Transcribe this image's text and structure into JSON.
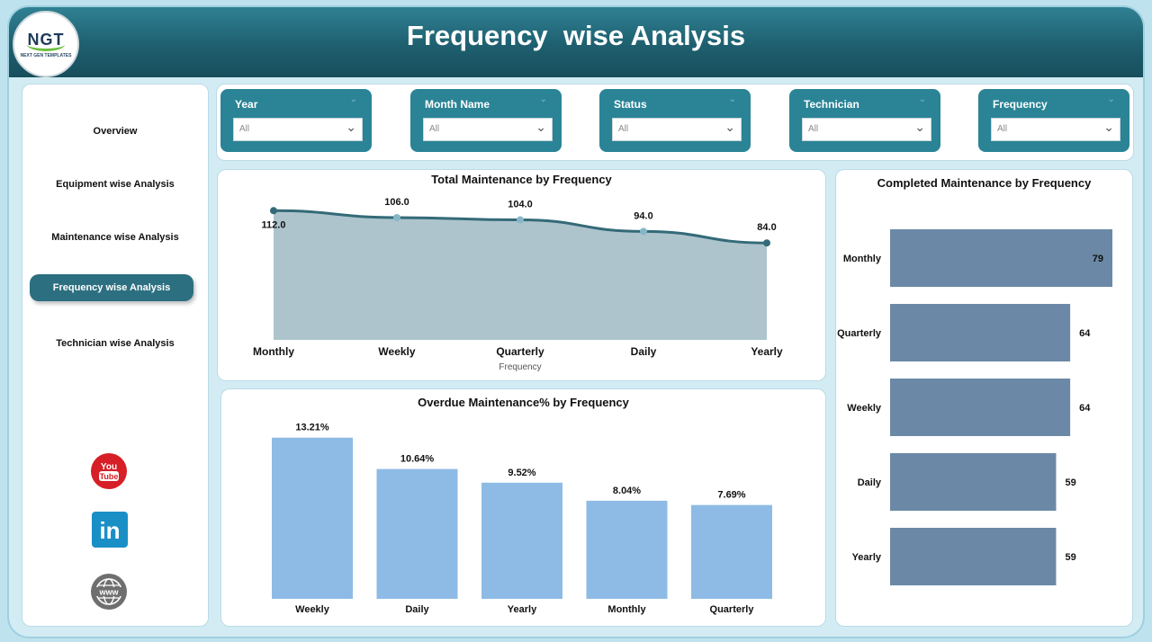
{
  "header": {
    "title": "Frequency  wise Analysis",
    "logo_text": "NGT",
    "logo_subtext": "NEXT GEN TEMPLATES"
  },
  "sidebar": {
    "items": [
      {
        "label": "Overview",
        "active": false
      },
      {
        "label": "Equipment wise Analysis",
        "active": false
      },
      {
        "label": "Maintenance wise Analysis",
        "active": false
      },
      {
        "label": "Frequency wise Analysis",
        "active": true
      },
      {
        "label": "Technician wise Analysis",
        "active": false
      }
    ],
    "social": {
      "youtube_label": "You Tube",
      "linkedin_label": "in",
      "web_label": "www"
    }
  },
  "filters": [
    {
      "label": "Year",
      "value": "All"
    },
    {
      "label": "Month Name",
      "value": "All"
    },
    {
      "label": "Status",
      "value": "All"
    },
    {
      "label": "Technician",
      "value": "All"
    },
    {
      "label": "Frequency",
      "value": "All"
    }
  ],
  "colors": {
    "header": "#1e5f6f",
    "area_fill": "#adc4cc",
    "area_line": "#346a78",
    "bar_blue": "#8ebbe6",
    "bar_slate": "#6b89a6",
    "active_nav": "#2c6f80"
  },
  "chart_data": [
    {
      "type": "area",
      "title": "Total Maintenance by Frequency",
      "xlabel": "Frequency",
      "ylabel": "",
      "categories": [
        "Monthly",
        "Weekly",
        "Quarterly",
        "Daily",
        "Yearly"
      ],
      "values": [
        112,
        106,
        104,
        94,
        84
      ],
      "labels": [
        "112.0",
        "106.0",
        "104.0",
        "94.0",
        "84.0"
      ],
      "ylim": [
        0,
        120
      ]
    },
    {
      "type": "bar",
      "title": "Overdue Maintenance% by Frequency",
      "categories": [
        "Weekly",
        "Daily",
        "Yearly",
        "Monthly",
        "Quarterly"
      ],
      "values": [
        13.21,
        10.64,
        9.52,
        8.04,
        7.69
      ],
      "labels": [
        "13.21%",
        "10.64%",
        "9.52%",
        "8.04%",
        "7.69%"
      ],
      "ylim": [
        0,
        14
      ]
    },
    {
      "type": "bar",
      "orientation": "horizontal",
      "title": "Completed Maintenance by Frequency",
      "categories": [
        "Monthly",
        "Quarterly",
        "Weekly",
        "Daily",
        "Yearly"
      ],
      "values": [
        79,
        64,
        64,
        59,
        59
      ],
      "labels": [
        "79",
        "64",
        "64",
        "59",
        "59"
      ],
      "xlim": [
        0,
        79
      ]
    }
  ]
}
